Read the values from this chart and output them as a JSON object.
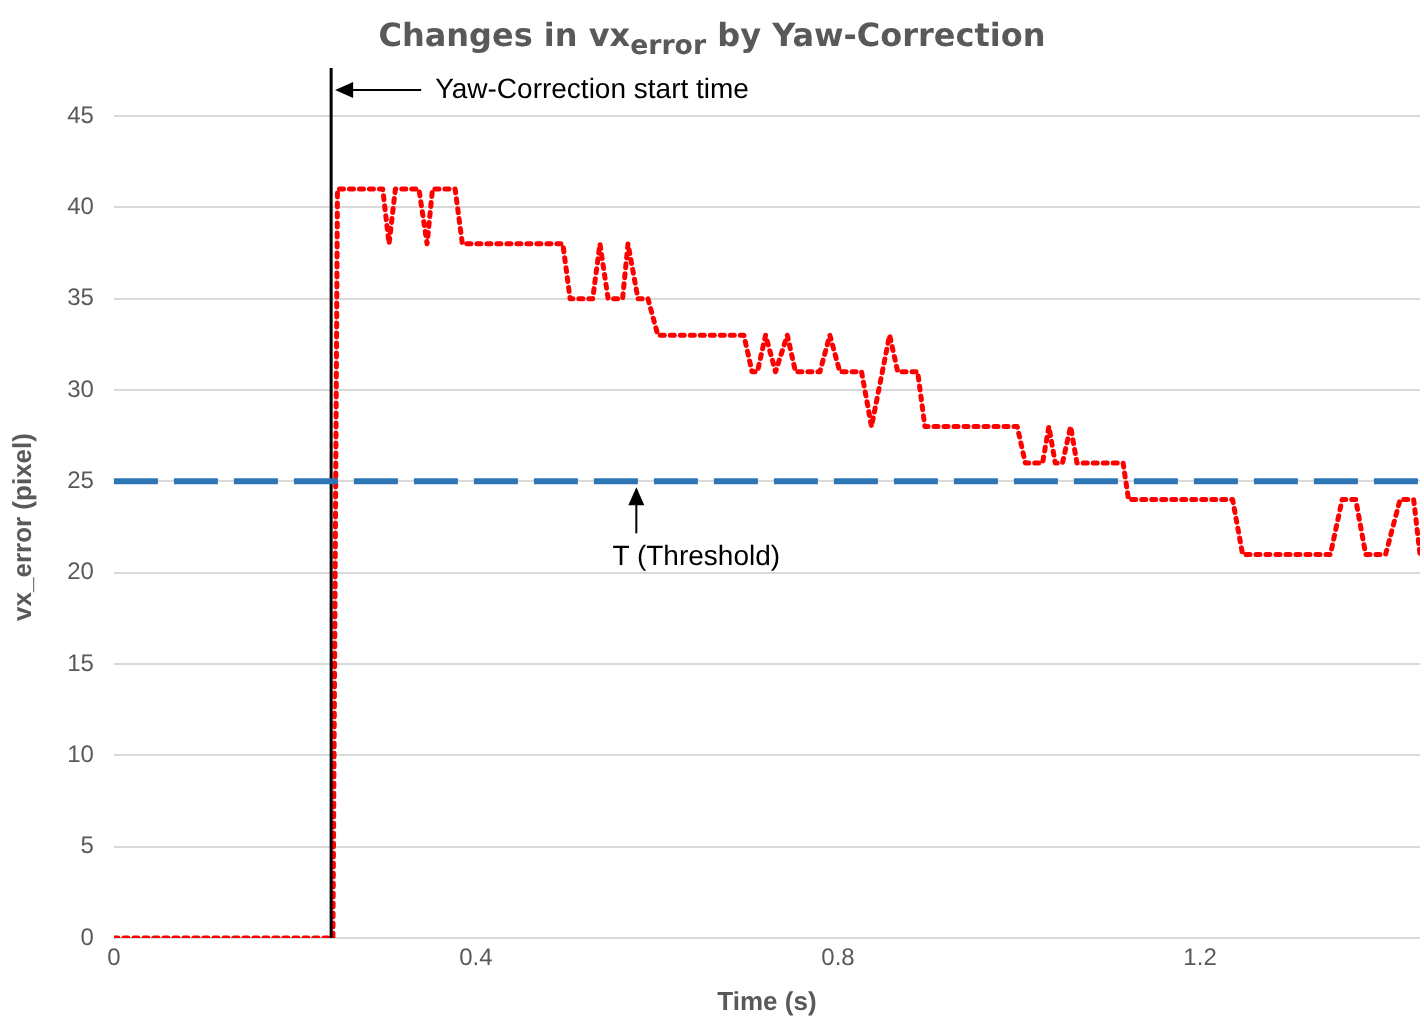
{
  "chart_data": {
    "type": "line",
    "title": "Changes in vx$_{error}$ by Yaw-Correction",
    "xlabel": "Time (s)",
    "ylabel": "vx_error (pixel)",
    "x": [
      0,
      0.242,
      0.247,
      0.297,
      0.304,
      0.311,
      0.337,
      0.346,
      0.352,
      0.377,
      0.385,
      0.496,
      0.504,
      0.529,
      0.537,
      0.546,
      0.562,
      0.568,
      0.579,
      0.59,
      0.601,
      0.696,
      0.705,
      0.711,
      0.72,
      0.731,
      0.744,
      0.753,
      0.78,
      0.791,
      0.802,
      0.826,
      0.837,
      0.857,
      0.866,
      0.888,
      0.896,
      0.998,
      1.007,
      1.026,
      1.033,
      1.04,
      1.048,
      1.057,
      1.064,
      1.115,
      1.121,
      1.236,
      1.247,
      1.344,
      1.357,
      1.372,
      1.383,
      1.405,
      1.421,
      1.436,
      1.443
    ],
    "series": [
      {
        "color": "#ff0000",
        "values": [
          0,
          0,
          41,
          41,
          38,
          41,
          41,
          38,
          41,
          41,
          38,
          38,
          35,
          35,
          38,
          35,
          35,
          38,
          35,
          35,
          33,
          33,
          31,
          31,
          33,
          31,
          33,
          31,
          31,
          33,
          31,
          31,
          28,
          33,
          31,
          31,
          28,
          28,
          26,
          26,
          28,
          26,
          26,
          28,
          26,
          26,
          24,
          24,
          21,
          21,
          24,
          24,
          21,
          21,
          24,
          24,
          21
        ]
      }
    ],
    "xlim": [
      0,
      1.443
    ],
    "xticks": [
      0,
      0.4,
      0.8,
      1.2
    ],
    "ylim": [
      0,
      45
    ],
    "yticks": [
      0,
      5,
      10,
      15,
      20,
      25,
      30,
      35,
      40,
      45
    ],
    "grid": "y",
    "legend": false,
    "marker": "none",
    "line_style": "dotted",
    "ref_lines": [
      {
        "axis": "x",
        "value": 0.24,
        "label": "Yaw-Correction start time",
        "color": "#000000",
        "line_style": "solid"
      },
      {
        "axis": "y",
        "value": 25,
        "label": "T (Threshold)",
        "color": "#2e75b6",
        "line_style": "dashed"
      }
    ]
  }
}
